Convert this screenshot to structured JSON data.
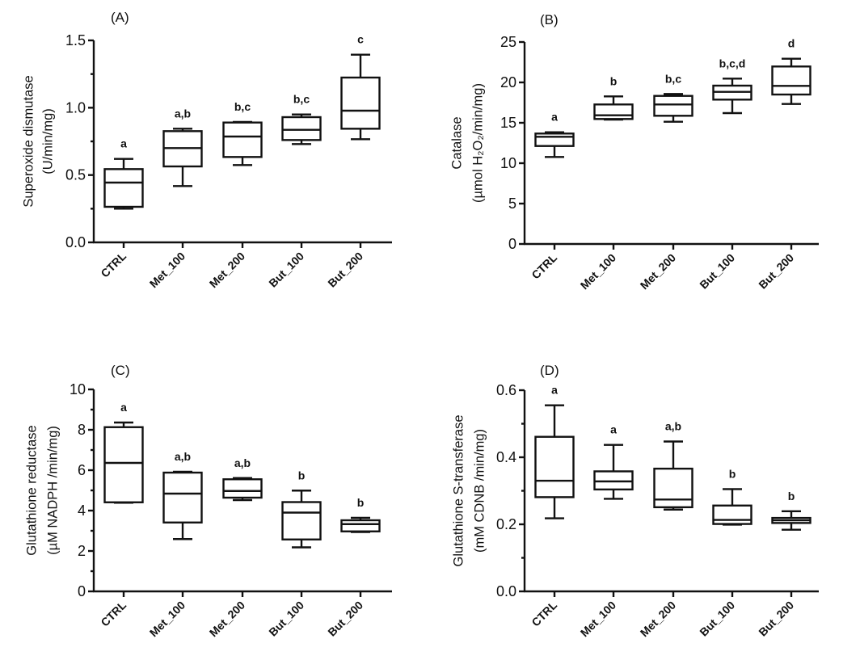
{
  "chart_data": [
    {
      "type": "box",
      "panel_label": "(A)",
      "ylabel_lines": [
        "Superoxide dismutase",
        "(U/min/mg)"
      ],
      "ylim": [
        0,
        1.5
      ],
      "yticks": [
        "0.0",
        "0.5",
        "1.0",
        "1.5"
      ],
      "ytick_values": [
        0,
        0.5,
        1.0,
        1.5
      ],
      "yminor_step": 0.25,
      "categories": [
        "CTRL",
        "Met_100",
        "Met_200",
        "But_100",
        "But_200"
      ],
      "boxes": [
        {
          "min": 0.25,
          "q1": 0.264,
          "median": 0.444,
          "q3": 0.544,
          "max": 0.62
        },
        {
          "min": 0.418,
          "q1": 0.564,
          "median": 0.7,
          "q3": 0.826,
          "max": 0.844
        },
        {
          "min": 0.574,
          "q1": 0.634,
          "median": 0.786,
          "q3": 0.89,
          "max": 0.894
        },
        {
          "min": 0.73,
          "q1": 0.76,
          "median": 0.836,
          "q3": 0.93,
          "max": 0.95
        },
        {
          "min": 0.766,
          "q1": 0.844,
          "median": 0.978,
          "q3": 1.224,
          "max": 1.394
        }
      ],
      "significance": [
        "a",
        "a,b",
        "b,c",
        "b,c",
        "c"
      ]
    },
    {
      "type": "box",
      "panel_label": "(B)",
      "ylabel_lines": [
        "Catalase",
        "(µmol H₂O₂/min/mg)"
      ],
      "ylim": [
        0,
        25
      ],
      "yticks": [
        "0",
        "5",
        "10",
        "15",
        "20",
        "25"
      ],
      "ytick_values": [
        0,
        5,
        10,
        15,
        20,
        25
      ],
      "yminor_step": null,
      "categories": [
        "CTRL",
        "Met_100",
        "Met_200",
        "But_100",
        "But_200"
      ],
      "boxes": [
        {
          "min": 10.77,
          "q1": 12.13,
          "median": 13.27,
          "q3": 13.67,
          "max": 13.83
        },
        {
          "min": 15.4,
          "q1": 15.47,
          "median": 15.93,
          "q3": 17.27,
          "max": 18.27
        },
        {
          "min": 15.13,
          "q1": 15.87,
          "median": 17.27,
          "q3": 18.33,
          "max": 18.57
        },
        {
          "min": 16.2,
          "q1": 17.87,
          "median": 18.83,
          "q3": 19.6,
          "max": 20.47
        },
        {
          "min": 17.33,
          "q1": 18.5,
          "median": 19.57,
          "q3": 21.97,
          "max": 22.93
        }
      ],
      "significance": [
        "a",
        "b",
        "b,c",
        "b,c,d",
        "d"
      ]
    },
    {
      "type": "box",
      "panel_label": "(C)",
      "ylabel_lines": [
        "Glutathione reductase",
        "(µM NADPH /min/mg)"
      ],
      "ylim": [
        0,
        10
      ],
      "yticks": [
        "0",
        "2",
        "4",
        "6",
        "8",
        "10"
      ],
      "ytick_values": [
        0,
        2,
        4,
        6,
        8,
        10
      ],
      "yminor_step": 1,
      "categories": [
        "CTRL",
        "Met_100",
        "Met_200",
        "But_100",
        "But_200"
      ],
      "boxes": [
        {
          "min": 4.39,
          "q1": 4.41,
          "median": 6.36,
          "q3": 8.13,
          "max": 8.36
        },
        {
          "min": 2.59,
          "q1": 3.41,
          "median": 4.84,
          "q3": 5.88,
          "max": 5.92
        },
        {
          "min": 4.52,
          "q1": 4.64,
          "median": 4.97,
          "q3": 5.55,
          "max": 5.61
        },
        {
          "min": 2.18,
          "q1": 2.57,
          "median": 3.9,
          "q3": 4.42,
          "max": 4.99
        },
        {
          "min": 2.94,
          "q1": 2.97,
          "median": 3.33,
          "q3": 3.52,
          "max": 3.64
        }
      ],
      "significance": [
        "a",
        "a,b",
        "a,b",
        "b",
        "b"
      ]
    },
    {
      "type": "box",
      "panel_label": "(D)",
      "ylabel_lines": [
        "Glutathione S-transferase",
        "(mM CDNB /min/mg)"
      ],
      "ylim": [
        0,
        0.6
      ],
      "yticks": [
        "0.0",
        "0.2",
        "0.4",
        "0.6"
      ],
      "ytick_values": [
        0,
        0.2,
        0.4,
        0.6
      ],
      "yminor_step": 0.1,
      "categories": [
        "CTRL",
        "Met_100",
        "Met_200",
        "But_100",
        "But_200"
      ],
      "boxes": [
        {
          "min": 0.218,
          "q1": 0.281,
          "median": 0.33,
          "q3": 0.461,
          "max": 0.555
        },
        {
          "min": 0.276,
          "q1": 0.304,
          "median": 0.328,
          "q3": 0.358,
          "max": 0.437
        },
        {
          "min": 0.244,
          "q1": 0.251,
          "median": 0.274,
          "q3": 0.366,
          "max": 0.447
        },
        {
          "min": 0.199,
          "q1": 0.201,
          "median": 0.213,
          "q3": 0.256,
          "max": 0.305
        },
        {
          "min": 0.184,
          "q1": 0.204,
          "median": 0.212,
          "q3": 0.219,
          "max": 0.239
        }
      ],
      "significance": [
        "a",
        "a",
        "a,b",
        "b",
        "b"
      ]
    }
  ]
}
